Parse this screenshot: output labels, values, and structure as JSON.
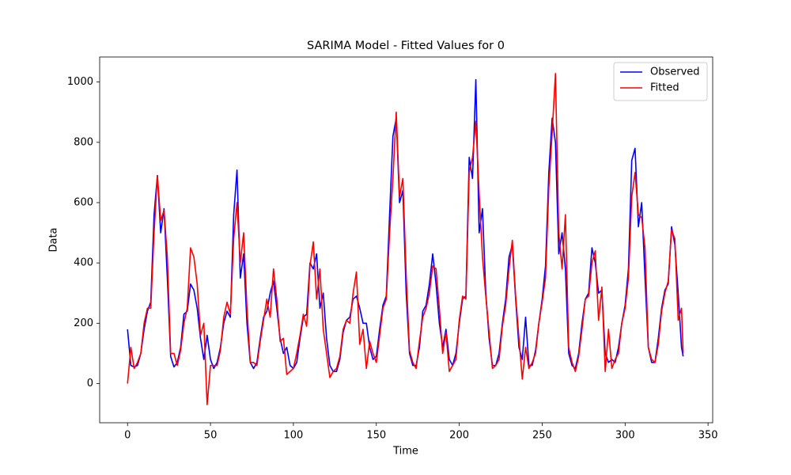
{
  "chart_data": {
    "type": "line",
    "title": "SARIMA Model - Fitted Values for 0",
    "xlabel": "Time",
    "ylabel": "Data",
    "x": [
      0,
      2,
      4,
      6,
      8,
      10,
      12,
      14,
      16,
      18,
      20,
      22,
      24,
      26,
      28,
      30,
      32,
      34,
      36,
      38,
      40,
      42,
      44,
      46,
      48,
      50,
      52,
      54,
      56,
      58,
      60,
      62,
      64,
      66,
      68,
      70,
      72,
      74,
      76,
      78,
      80,
      82,
      84,
      86,
      88,
      90,
      92,
      94,
      96,
      98,
      100,
      102,
      104,
      106,
      108,
      110,
      112,
      114,
      116,
      118,
      120,
      122,
      124,
      126,
      128,
      130,
      132,
      134,
      136,
      138,
      140,
      142,
      144,
      146,
      148,
      150,
      152,
      154,
      156,
      158,
      160,
      162,
      164,
      166,
      168,
      170,
      172,
      174,
      176,
      178,
      180,
      182,
      184,
      186,
      188,
      190,
      192,
      194,
      196,
      198,
      200,
      202,
      204,
      206,
      208,
      210,
      212,
      214,
      216,
      218,
      220,
      222,
      224,
      226,
      228,
      230,
      232,
      234,
      236,
      238,
      240,
      242,
      244,
      246,
      248,
      250,
      252,
      254,
      256,
      258,
      260,
      262,
      264,
      266,
      268,
      270,
      272,
      274,
      276,
      278,
      280,
      282,
      284,
      286,
      288,
      290,
      292,
      294,
      296,
      298,
      300,
      302,
      304,
      306,
      308,
      310,
      312,
      314,
      316,
      318,
      320,
      322,
      324,
      326,
      328,
      330,
      332,
      334,
      335
    ],
    "series": [
      {
        "name": "Observed",
        "color": "#0000ff",
        "values": [
          180,
          60,
          55,
          60,
          100,
          180,
          240,
          270,
          560,
          690,
          500,
          580,
          350,
          90,
          55,
          70,
          120,
          230,
          240,
          330,
          310,
          250,
          150,
          80,
          160,
          80,
          50,
          70,
          120,
          200,
          240,
          220,
          560,
          708,
          350,
          430,
          200,
          70,
          50,
          70,
          150,
          220,
          240,
          300,
          340,
          250,
          150,
          100,
          120,
          60,
          50,
          70,
          150,
          220,
          230,
          400,
          380,
          430,
          250,
          300,
          150,
          60,
          40,
          40,
          80,
          170,
          210,
          220,
          280,
          290,
          250,
          200,
          200,
          120,
          80,
          90,
          180,
          260,
          290,
          560,
          820,
          880,
          600,
          640,
          300,
          100,
          60,
          60,
          120,
          240,
          260,
          330,
          430,
          330,
          200,
          120,
          180,
          80,
          60,
          100,
          200,
          280,
          290,
          750,
          680,
          1008,
          500,
          580,
          300,
          150,
          60,
          60,
          100,
          200,
          280,
          420,
          460,
          280,
          120,
          80,
          220,
          60,
          60,
          110,
          200,
          280,
          390,
          700,
          880,
          800,
          430,
          500,
          380,
          100,
          60,
          50,
          100,
          200,
          280,
          300,
          450,
          400,
          300,
          310,
          100,
          70,
          80,
          70,
          120,
          200,
          260,
          380,
          740,
          780,
          520,
          600,
          350,
          120,
          70,
          70,
          150,
          250,
          310,
          330,
          520,
          460,
          300,
          120,
          90
        ]
      },
      {
        "name": "Fitted",
        "color": "#ff0000",
        "values": [
          0,
          120,
          50,
          70,
          100,
          200,
          250,
          250,
          500,
          690,
          540,
          575,
          420,
          100,
          100,
          60,
          110,
          200,
          250,
          450,
          420,
          330,
          160,
          200,
          -70,
          60,
          60,
          60,
          110,
          220,
          270,
          230,
          480,
          600,
          400,
          500,
          250,
          70,
          70,
          60,
          140,
          210,
          280,
          220,
          380,
          280,
          140,
          150,
          30,
          40,
          50,
          100,
          160,
          230,
          190,
          390,
          470,
          280,
          380,
          180,
          100,
          20,
          40,
          50,
          90,
          180,
          210,
          200,
          300,
          370,
          130,
          180,
          50,
          140,
          100,
          70,
          160,
          250,
          280,
          500,
          680,
          900,
          620,
          680,
          360,
          110,
          70,
          50,
          140,
          220,
          250,
          300,
          390,
          380,
          250,
          100,
          170,
          40,
          60,
          80,
          210,
          290,
          280,
          700,
          750,
          870,
          630,
          420,
          290,
          170,
          50,
          60,
          80,
          190,
          260,
          380,
          475,
          290,
          150,
          15,
          120,
          50,
          70,
          100,
          200,
          270,
          350,
          650,
          830,
          1028,
          500,
          380,
          560,
          120,
          70,
          40,
          90,
          180,
          280,
          290,
          400,
          440,
          210,
          320,
          40,
          180,
          50,
          80,
          100,
          200,
          250,
          350,
          620,
          700,
          560,
          550,
          450,
          120,
          80,
          70,
          130,
          240,
          300,
          340,
          510,
          480,
          210,
          250,
          100
        ]
      }
    ],
    "xlim": [
      -16.8,
      352.8
    ],
    "ylim": [
      -130,
      1083
    ],
    "xticks": [
      0,
      50,
      100,
      150,
      200,
      250,
      300,
      350
    ],
    "yticks": [
      0,
      200,
      400,
      600,
      800,
      1000
    ],
    "legend": "upper right"
  }
}
